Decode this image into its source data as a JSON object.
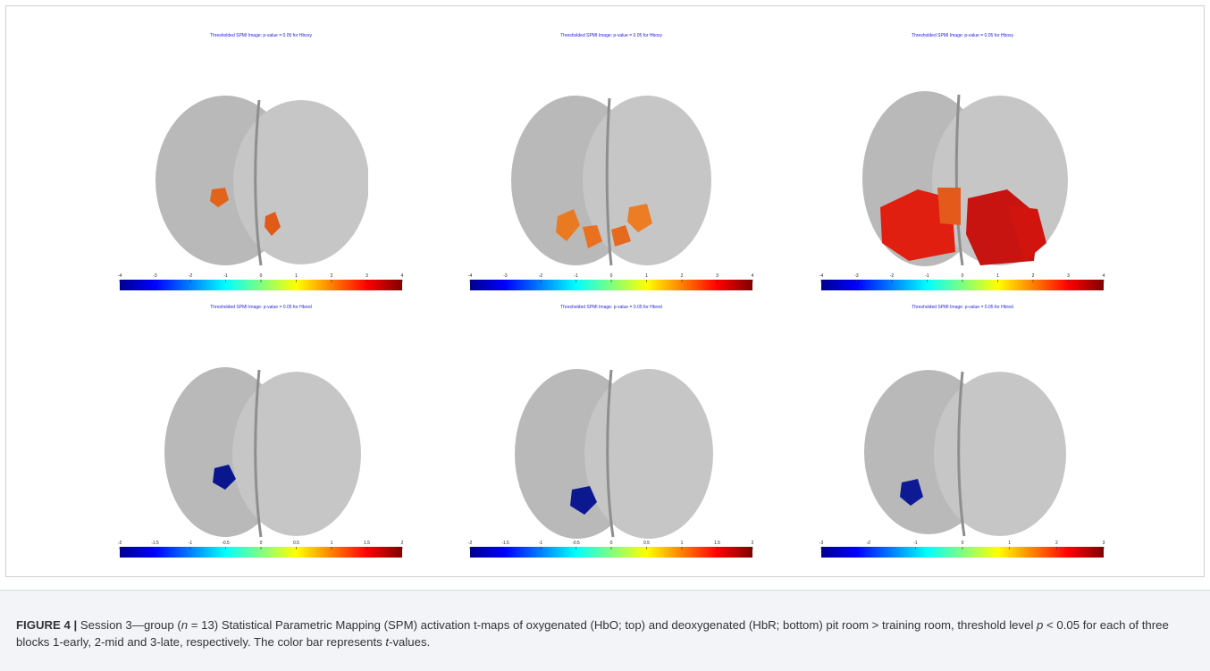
{
  "figure": {
    "panels": [
      {
        "title": "Thresholded SPMI Image: p-value = 0.05  for Hboxy",
        "ticks": [
          "-4",
          "-3",
          "-2",
          "-1",
          "0",
          "1",
          "2",
          "3",
          "4"
        ],
        "regions": [
          {
            "color": "#e2631a"
          },
          {
            "color": "#e05a18"
          }
        ]
      },
      {
        "title": "Thresholded SPMI Image: p-value = 0.05  for Hboxy",
        "ticks": [
          "-4",
          "-3",
          "-2",
          "-1",
          "0",
          "1",
          "2",
          "3",
          "4"
        ],
        "regions": [
          {
            "color": "#ea7a22"
          },
          {
            "color": "#e8701f"
          },
          {
            "color": "#e66a1d"
          },
          {
            "color": "#ec7d25"
          }
        ]
      },
      {
        "title": "Thresholded SPMI Image: p-value = 0.05  for Hboxy",
        "ticks": [
          "-4",
          "-3",
          "-2",
          "-1",
          "0",
          "1",
          "2",
          "3",
          "4"
        ],
        "regions": [
          {
            "color": "#e01f10"
          },
          {
            "color": "#c81410"
          },
          {
            "color": "#e35a1a"
          },
          {
            "color": "#d2140f"
          }
        ]
      },
      {
        "title": "Thresholded SPMI Image: p-value = 0.05  for Hbred",
        "ticks": [
          "-2",
          "-1.5",
          "-1",
          "-0.5",
          "0",
          "0.5",
          "1",
          "1.5",
          "2"
        ],
        "regions": [
          {
            "color": "#0a168e"
          }
        ]
      },
      {
        "title": "Thresholded SPMI Image: p-value = 0.05  for Hbred",
        "ticks": [
          "-2",
          "-1.5",
          "-1",
          "-0.5",
          "0",
          "0.5",
          "1",
          "1.5",
          "2"
        ],
        "regions": [
          {
            "color": "#0b1890"
          }
        ]
      },
      {
        "title": "Thresholded SPMI Image: p-value = 0.05  for Hbred",
        "ticks": [
          "-3",
          "-2",
          "-1",
          "0",
          "1",
          "2",
          "3"
        ],
        "regions": [
          {
            "color": "#0d1a94"
          }
        ]
      }
    ]
  },
  "caption": {
    "label": "FIGURE 4 |",
    "text_1": " Session 3—group (",
    "n_italic": "n",
    "text_2": " = 13) Statistical Parametric Mapping (SPM) activation t-maps of oxygenated (HbO; top) and deoxygenated (HbR; bottom) pit room > training room, threshold level ",
    "p_italic": "p",
    "text_3": " < 0.05 for each of three blocks 1-early, 2-mid and 3-late, respectively. The color bar represents ",
    "t_italic": "t",
    "text_4": "-values."
  }
}
